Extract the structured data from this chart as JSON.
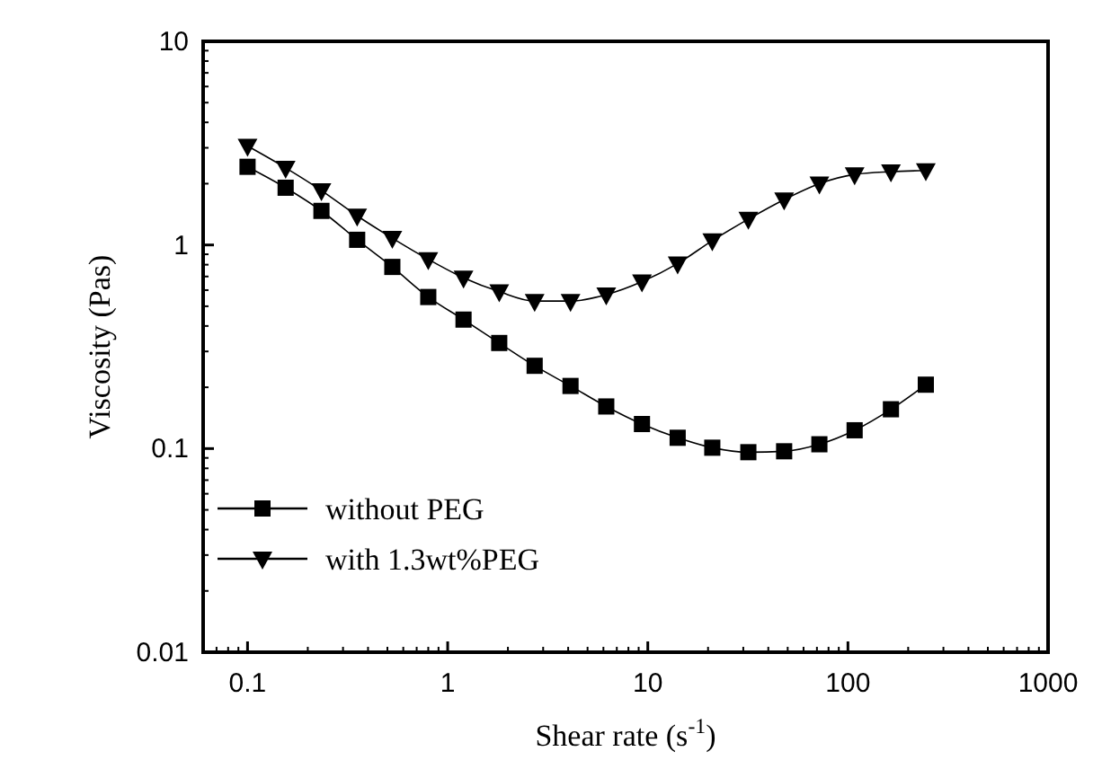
{
  "chart_data": {
    "type": "line",
    "xlabel": "Shear rate (s$^{-1}$)",
    "ylabel": "Viscosity (Pas)",
    "log": "xy",
    "xlim": [
      0.06,
      1000
    ],
    "xticks": [
      0.1,
      1,
      10,
      100,
      1000
    ],
    "ylim": [
      0.01,
      10
    ],
    "yticks": [
      0.01,
      0.1,
      1,
      10
    ],
    "grid": false,
    "legend": "bottom left",
    "line_style": "solid",
    "x": [
      0.1,
      0.155,
      0.234,
      0.353,
      0.529,
      0.8,
      1.2,
      1.81,
      2.72,
      4.11,
      6.2,
      9.35,
      14.1,
      21,
      31.8,
      48,
      72,
      108,
      164,
      245
    ],
    "series": [
      {
        "name": "without PEG",
        "color": "#000000",
        "marker": "square",
        "values": [
          2.42,
          1.91,
          1.47,
          1.06,
          0.78,
          0.555,
          0.43,
          0.33,
          0.255,
          0.203,
          0.161,
          0.132,
          0.113,
          0.101,
          0.096,
          0.097,
          0.105,
          0.123,
          0.156,
          0.206
        ]
      },
      {
        "name": "with 1.3wt%PEG",
        "color": "#000000",
        "marker": "triangle",
        "values": [
          3.06,
          2.39,
          1.85,
          1.39,
          1.08,
          0.85,
          0.69,
          0.59,
          0.53,
          0.53,
          0.57,
          0.66,
          0.81,
          1.05,
          1.34,
          1.67,
          2.0,
          2.22,
          2.29,
          2.32
        ]
      }
    ]
  }
}
